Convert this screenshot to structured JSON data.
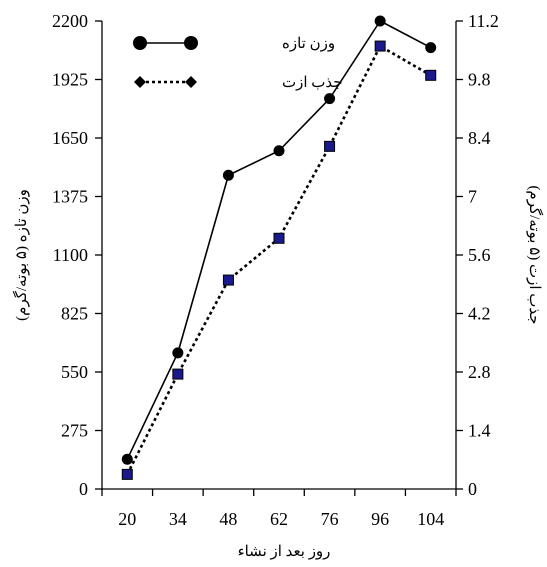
{
  "chart_data": {
    "type": "line",
    "categories": [
      "20",
      "34",
      "48",
      "62",
      "76",
      "96",
      "104"
    ],
    "xlabel": "روز بعد از نشاء",
    "ylabel_left": "وزن تازه (۵ بوته/گرم)",
    "ylabel_right": "جذب ازت (۵ بوته/گرم)",
    "y_left": {
      "lim": [
        0,
        2200
      ],
      "ticks": [
        0,
        275,
        550,
        825,
        1100,
        1375,
        1650,
        1925,
        2200
      ]
    },
    "y_right": {
      "lim": [
        0,
        11.2
      ],
      "ticks": [
        0,
        1.4,
        2.8,
        4.2,
        5.6,
        7,
        8.4,
        9.8,
        11.2
      ]
    },
    "series": [
      {
        "name": "وزن تازه",
        "axis": "left",
        "values": [
          140,
          640,
          1475,
          1590,
          1835,
          2200,
          2075
        ],
        "color": "#000000",
        "line_style": "solid",
        "marker": "circle"
      },
      {
        "name": "جذب ازت",
        "axis": "right",
        "values": [
          0.35,
          2.75,
          5.0,
          6.0,
          8.2,
          10.6,
          9.9
        ],
        "color": "#1a1a8c",
        "line_style": "dotted",
        "marker": "square"
      }
    ],
    "legend": {
      "position": "top-left",
      "entries": [
        "وزن تازه",
        "جذب ازت"
      ]
    },
    "grid": false
  }
}
